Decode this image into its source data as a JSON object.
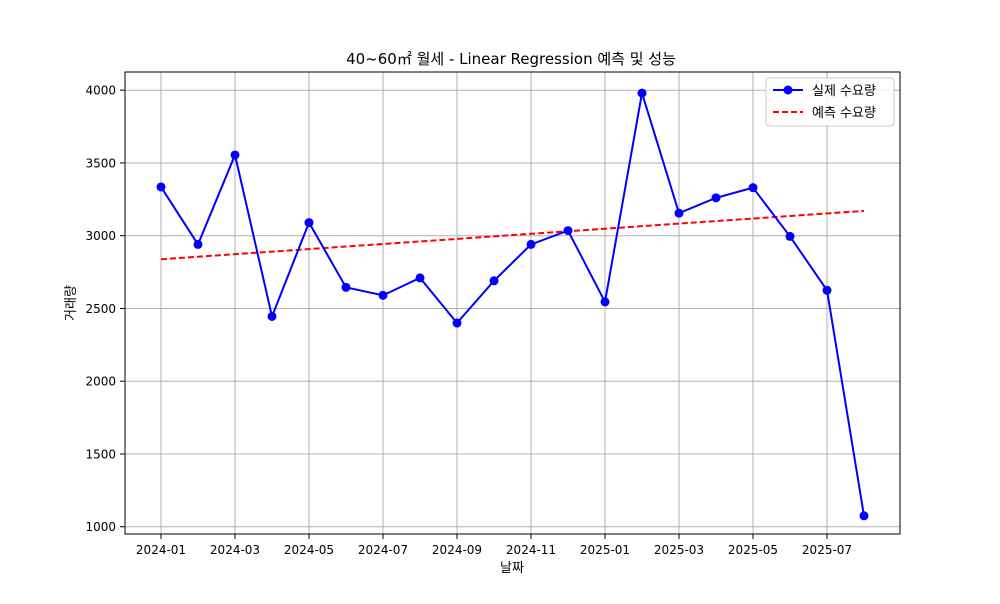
{
  "chart_data": {
    "type": "line",
    "title": "40~60㎡ 월세 - Linear Regression 예측 및 성능",
    "xlabel": "날짜",
    "ylabel": "거래량",
    "x": [
      "2024-01",
      "2024-02",
      "2024-03",
      "2024-04",
      "2024-05",
      "2024-06",
      "2024-07",
      "2024-08",
      "2024-09",
      "2024-10",
      "2024-11",
      "2024-12",
      "2025-01",
      "2025-02",
      "2025-03",
      "2025-04",
      "2025-05",
      "2025-06",
      "2025-07",
      "2025-08"
    ],
    "x_ticks": [
      "2024-01",
      "2024-03",
      "2024-05",
      "2024-07",
      "2024-09",
      "2024-11",
      "2025-01",
      "2025-03",
      "2025-05",
      "2025-07"
    ],
    "y_ticks": [
      1000,
      1500,
      2000,
      2500,
      3000,
      3500,
      4000
    ],
    "ylim": [
      950,
      4125
    ],
    "grid": true,
    "legend_position": "top-right",
    "series": [
      {
        "name": "실제 수요량",
        "color": "#0000ff",
        "style": "solid-with-markers",
        "values": [
          3335,
          2940,
          3555,
          2445,
          3090,
          2645,
          2590,
          2710,
          2400,
          2690,
          2940,
          3035,
          2545,
          3980,
          3155,
          3260,
          3330,
          2995,
          2625,
          1075
        ]
      },
      {
        "name": "예측 수요량",
        "color": "#ff0000",
        "style": "dashed",
        "values": [
          2838,
          2855.5,
          2873,
          2890.5,
          2908,
          2925.5,
          2943,
          2960.5,
          2978,
          2995.5,
          3013,
          3030.5,
          3048,
          3065.5,
          3083,
          3100.5,
          3118,
          3135.5,
          3153,
          3170.5
        ]
      }
    ]
  }
}
